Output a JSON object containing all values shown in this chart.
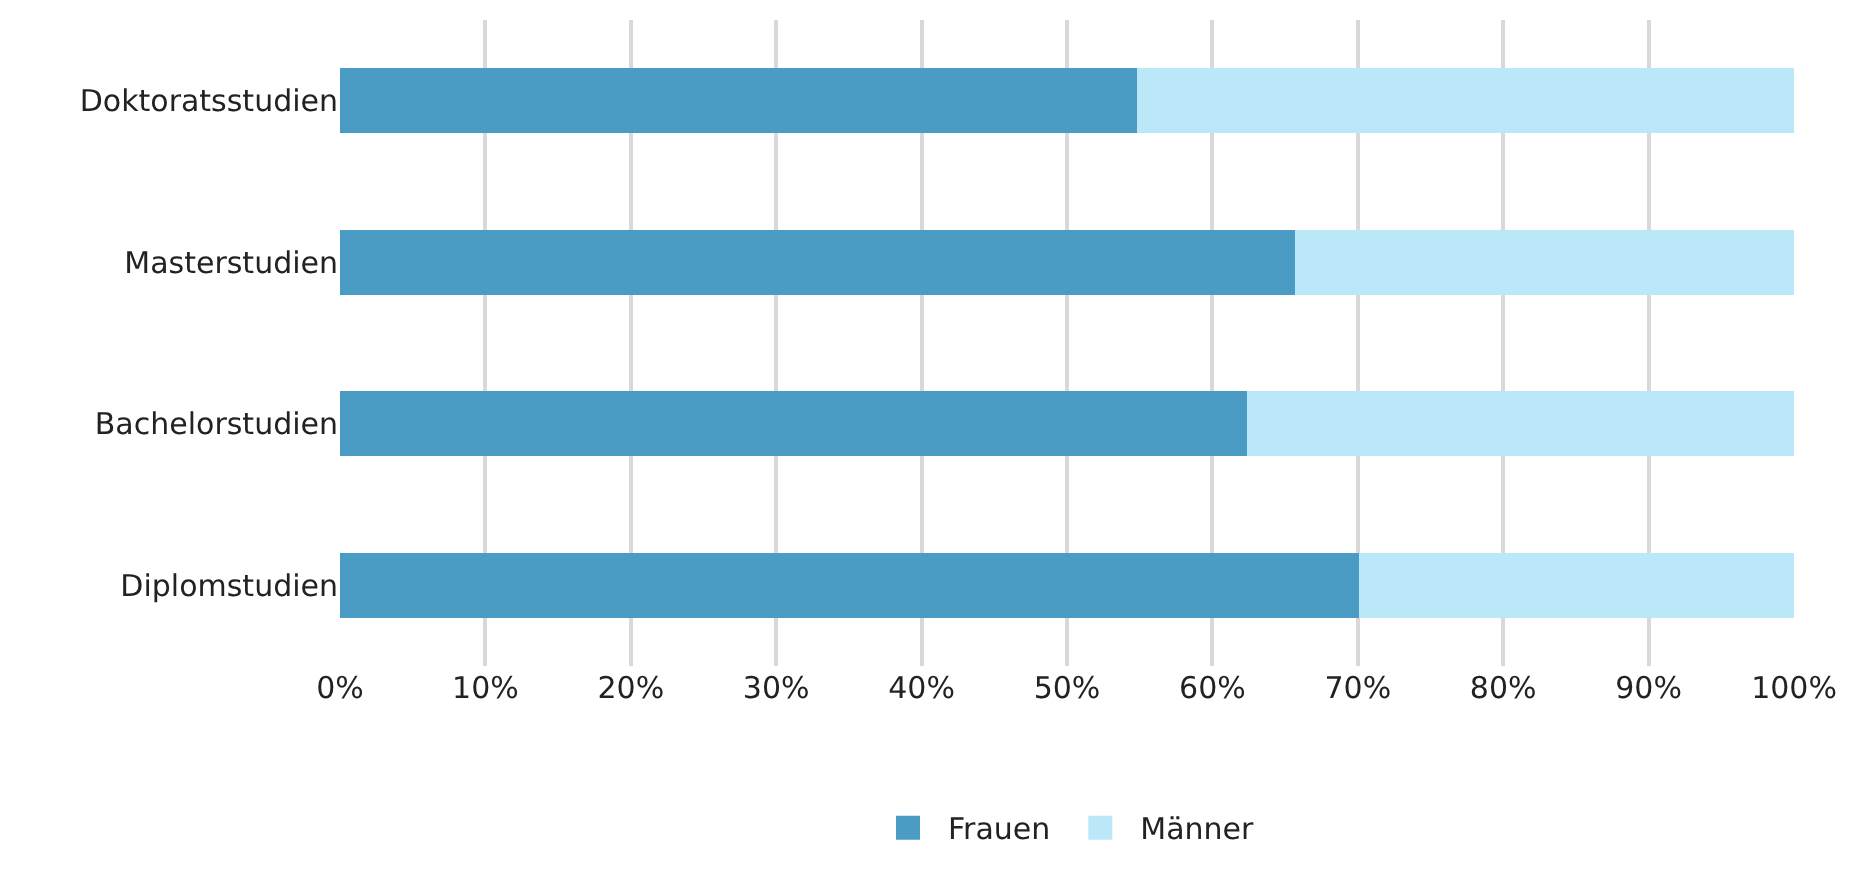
{
  "chart_data": {
    "type": "bar",
    "orientation": "horizontal",
    "stacked": true,
    "categories": [
      "Doktoratsstudien",
      "Masterstudien",
      "Bachelorstudien",
      "Diplomstudien"
    ],
    "series": [
      {
        "name": "Frauen",
        "color": "#4a9cc5",
        "values": [
          54.8,
          65.7,
          62.4,
          70.1
        ]
      },
      {
        "name": "Männer",
        "color": "#bae8f9",
        "values": [
          45.2,
          34.3,
          37.6,
          29.9
        ]
      }
    ],
    "xlim": [
      0,
      100
    ],
    "xticks": [
      {
        "value": 0,
        "label": "0%"
      },
      {
        "value": 10,
        "label": "10%"
      },
      {
        "value": 20,
        "label": "20%"
      },
      {
        "value": 30,
        "label": "30%"
      },
      {
        "value": 40,
        "label": "40%"
      },
      {
        "value": 50,
        "label": "50%"
      },
      {
        "value": 60,
        "label": "60%"
      },
      {
        "value": 70,
        "label": "70%"
      },
      {
        "value": 80,
        "label": "80%"
      },
      {
        "value": 90,
        "label": "90%"
      },
      {
        "value": 100,
        "label": "100%"
      }
    ],
    "grid": "x",
    "legend": "bottom"
  }
}
